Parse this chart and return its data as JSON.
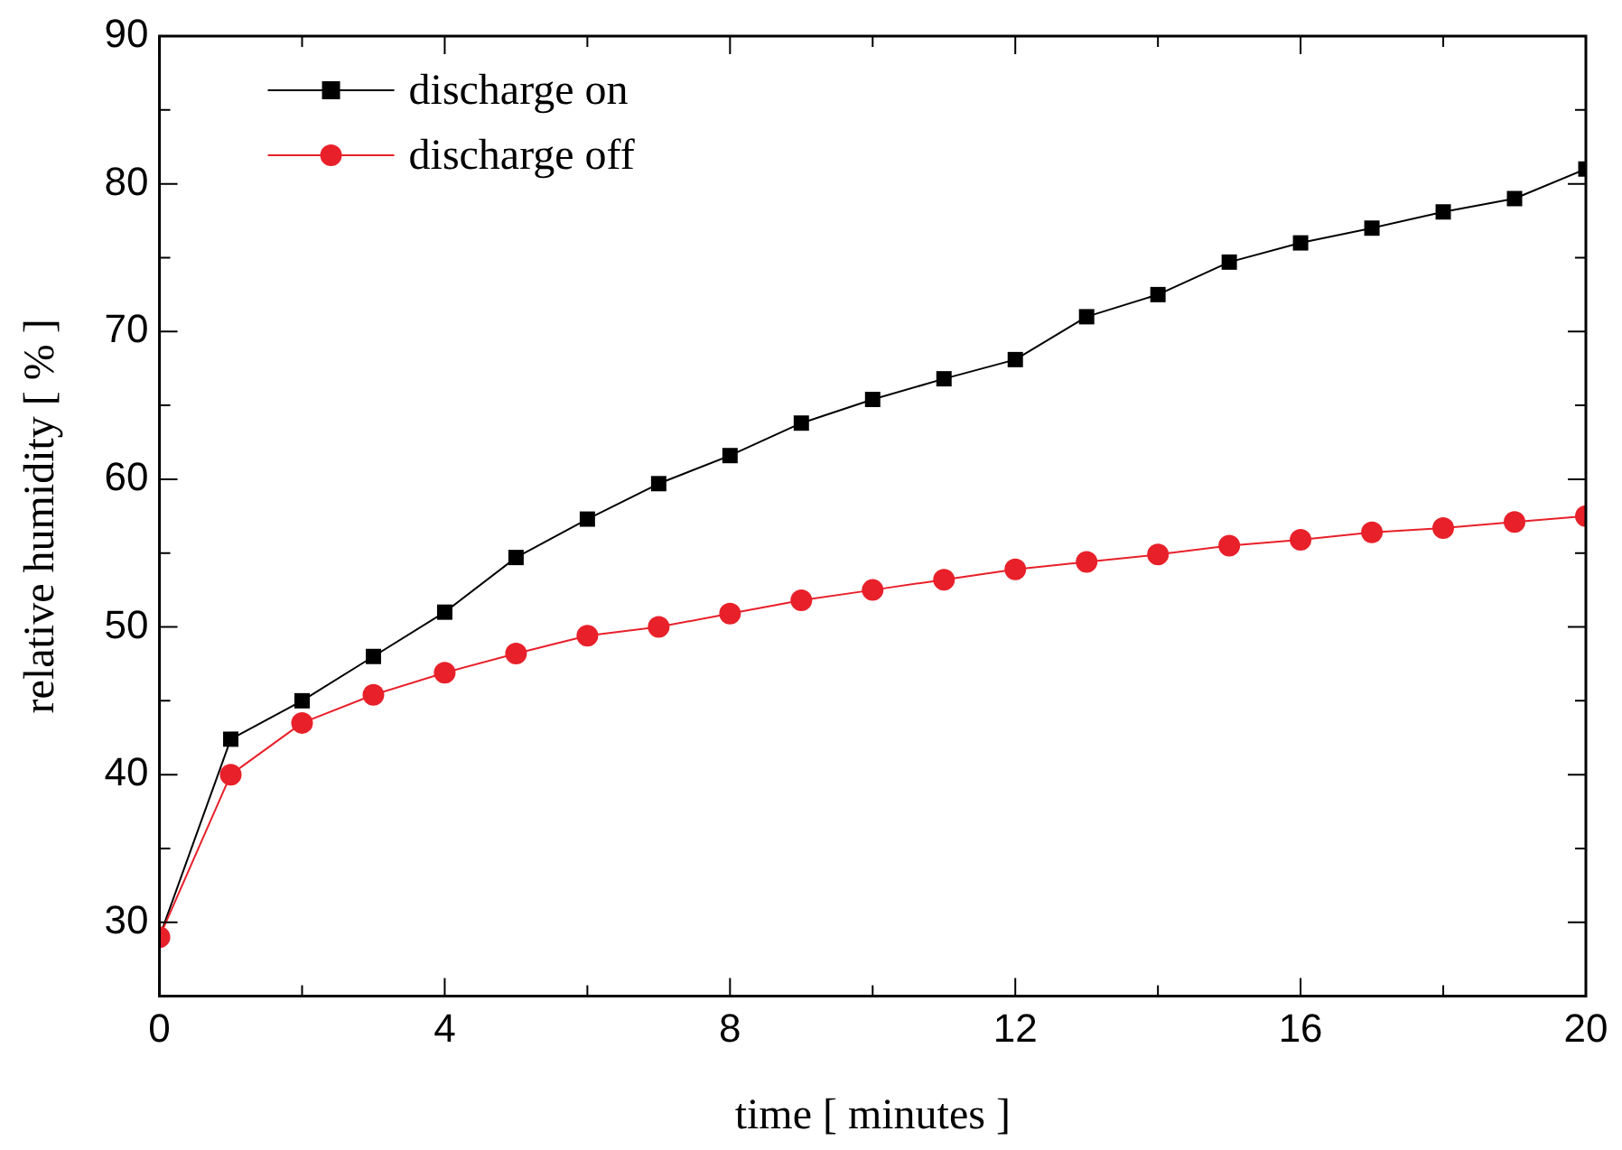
{
  "chart_data": {
    "type": "line",
    "xlabel": "time [ minutes ]",
    "ylabel": "relative humidity [ % ]",
    "x": [
      0,
      1,
      2,
      3,
      4,
      5,
      6,
      7,
      8,
      9,
      10,
      11,
      12,
      13,
      14,
      15,
      16,
      17,
      18,
      19,
      20
    ],
    "series": [
      {
        "name": "discharge on",
        "color": "#000000",
        "marker": "square",
        "values": [
          29.0,
          42.4,
          45.0,
          48.0,
          51.0,
          54.7,
          57.3,
          59.7,
          61.6,
          63.8,
          65.4,
          66.8,
          68.1,
          71.0,
          72.5,
          74.7,
          76.0,
          77.0,
          78.1,
          79.0,
          81.0
        ]
      },
      {
        "name": "discharge off",
        "color": "#e8202a",
        "marker": "circle",
        "values": [
          29.0,
          40.0,
          43.5,
          45.4,
          46.9,
          48.2,
          49.4,
          50.0,
          50.9,
          51.8,
          52.5,
          53.2,
          53.9,
          54.4,
          54.9,
          55.5,
          55.9,
          56.4,
          56.7,
          57.1,
          57.5
        ]
      }
    ],
    "xlim": [
      0,
      20
    ],
    "xticks": [
      0,
      4,
      8,
      12,
      16,
      20
    ],
    "ylim": [
      25,
      90
    ],
    "yticks": [
      30,
      40,
      50,
      60,
      70,
      80,
      90
    ],
    "grid": false,
    "legend": "top left",
    "line_style": "solid"
  }
}
